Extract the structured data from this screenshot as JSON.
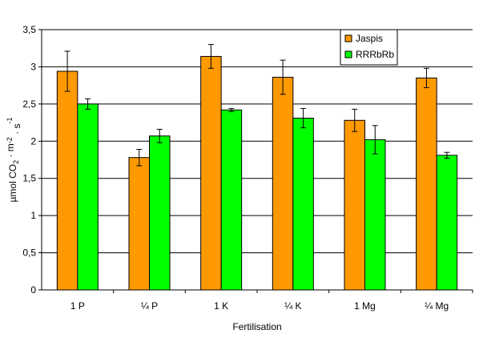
{
  "chart_data": {
    "type": "bar",
    "title": "",
    "xlabel": "Fertilisation",
    "ylabel_parts": [
      "µmol CO",
      "2",
      " · m",
      "-2",
      " · s",
      "-1"
    ],
    "categories": [
      "1 P",
      "¼ P",
      "1 K",
      "¼ K",
      "1 Mg",
      "¼ Mg"
    ],
    "ylim": [
      0,
      3.5
    ],
    "yticks": [
      0,
      0.5,
      1,
      1.5,
      2,
      2.5,
      3,
      3.5
    ],
    "ytick_labels": [
      "0",
      "0,5",
      "1",
      "1,5",
      "2",
      "2,5",
      "3",
      "3,5"
    ],
    "grid": true,
    "legend_position": "top-right",
    "series": [
      {
        "name": "Jaspis",
        "color": "#FF9900",
        "values": [
          2.94,
          1.78,
          3.14,
          2.86,
          2.28,
          2.85
        ],
        "errors": [
          0.27,
          0.11,
          0.16,
          0.23,
          0.15,
          0.13
        ]
      },
      {
        "name": "RRRbRb",
        "color": "#00FF00",
        "values": [
          2.5,
          2.07,
          2.42,
          2.31,
          2.02,
          1.81
        ],
        "errors": [
          0.07,
          0.09,
          0.02,
          0.13,
          0.19,
          0.04
        ]
      }
    ]
  }
}
